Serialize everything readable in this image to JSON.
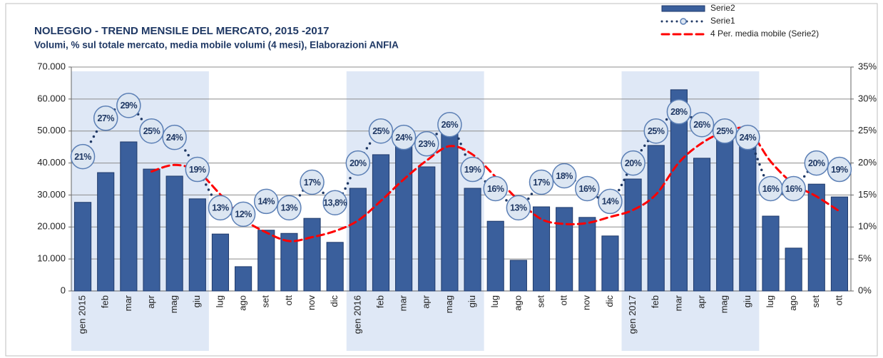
{
  "chart_data": {
    "type": "bar",
    "title": "NOLEGGIO - TREND MENSILE DEL MERCATO, 2015 -2017",
    "subtitle": "Volumi, % sul totale mercato, media mobile volumi (4 mesi), Elaborazioni ANFIA",
    "categories": [
      "gen 2015",
      "feb",
      "mar",
      "apr",
      "mag",
      "giu",
      "lug",
      "ago",
      "set",
      "ott",
      "nov",
      "dic",
      "gen 2016",
      "feb",
      "mar",
      "apr",
      "mag",
      "giu",
      "lug",
      "ago",
      "set",
      "ott",
      "nov",
      "dic",
      "gen 2017",
      "feb",
      "mar",
      "apr",
      "mag",
      "giu",
      "lug",
      "ago",
      "set",
      "ott"
    ],
    "series": [
      {
        "name": "Serie2",
        "type": "bar",
        "color": "#3a5f9c",
        "values": [
          27700,
          37000,
          46600,
          38100,
          35900,
          28800,
          17800,
          7600,
          19000,
          18000,
          22700,
          15200,
          32100,
          42600,
          49700,
          38800,
          50000,
          32100,
          21800,
          9600,
          26300,
          26100,
          23000,
          17200,
          35000,
          45500,
          62900,
          41500,
          49000,
          48000,
          23400,
          13400,
          33400,
          29400
        ]
      },
      {
        "name": "Serie1",
        "type": "line",
        "axis": "y2",
        "color": "#1f3864",
        "dash": "dotted",
        "values": [
          21,
          27,
          29,
          25,
          24,
          19,
          13,
          12,
          14,
          13,
          17,
          13.8,
          20,
          25,
          24,
          23,
          26,
          19,
          16,
          13,
          17,
          18,
          16,
          14,
          20,
          25,
          28,
          26,
          25,
          24,
          16,
          16,
          20,
          19
        ],
        "value_labels": [
          "21%",
          "27%",
          "29%",
          "25%",
          "24%",
          "19%",
          "13%",
          "12%",
          "14%",
          "13%",
          "17%",
          "13,8%",
          "20%",
          "25%",
          "24%",
          "23%",
          "26%",
          "19%",
          "16%",
          "13%",
          "17%",
          "18%",
          "16%",
          "14%",
          "20%",
          "25%",
          "28%",
          "26%",
          "25%",
          "24%",
          "16%",
          "16%",
          "20%",
          "19%"
        ]
      },
      {
        "name": "4 Per. media mobile (Serie2)",
        "type": "line",
        "color": "#ff0000",
        "dash": "dashed",
        "values": [
          null,
          null,
          null,
          37350,
          39400,
          37350,
          30150,
          22525,
          18300,
          15600,
          16825,
          18725,
          22000,
          28150,
          34900,
          40800,
          45275,
          42650,
          35675,
          28375,
          22450,
          20950,
          21250,
          23150,
          25325,
          30175,
          40150,
          46225,
          49725,
          50350,
          40475,
          33450,
          29550,
          24900
        ]
      }
    ],
    "ylim": [
      0,
      70000
    ],
    "yticks": [
      0,
      {
        "value": 10000,
        "label": "10.000"
      },
      {
        "value": 20000,
        "label": "20.000"
      },
      {
        "value": 30000,
        "label": "30.000"
      },
      {
        "value": 40000,
        "label": "40.000"
      },
      {
        "value": 50000,
        "label": "50.000"
      },
      {
        "value": 60000,
        "label": "60.000"
      },
      {
        "value": 70000,
        "label": "70.000"
      }
    ],
    "y2lim": [
      0,
      35
    ],
    "y2ticks": [
      {
        "value": 0,
        "label": "0%"
      },
      {
        "value": 5,
        "label": "5%"
      },
      {
        "value": 10,
        "label": "10%"
      },
      {
        "value": 15,
        "label": "15%"
      },
      {
        "value": 20,
        "label": "20%"
      },
      {
        "value": 25,
        "label": "25%"
      },
      {
        "value": 30,
        "label": "30%"
      },
      {
        "value": 35,
        "label": "35%"
      }
    ],
    "grid": true,
    "legend": "top-right"
  }
}
